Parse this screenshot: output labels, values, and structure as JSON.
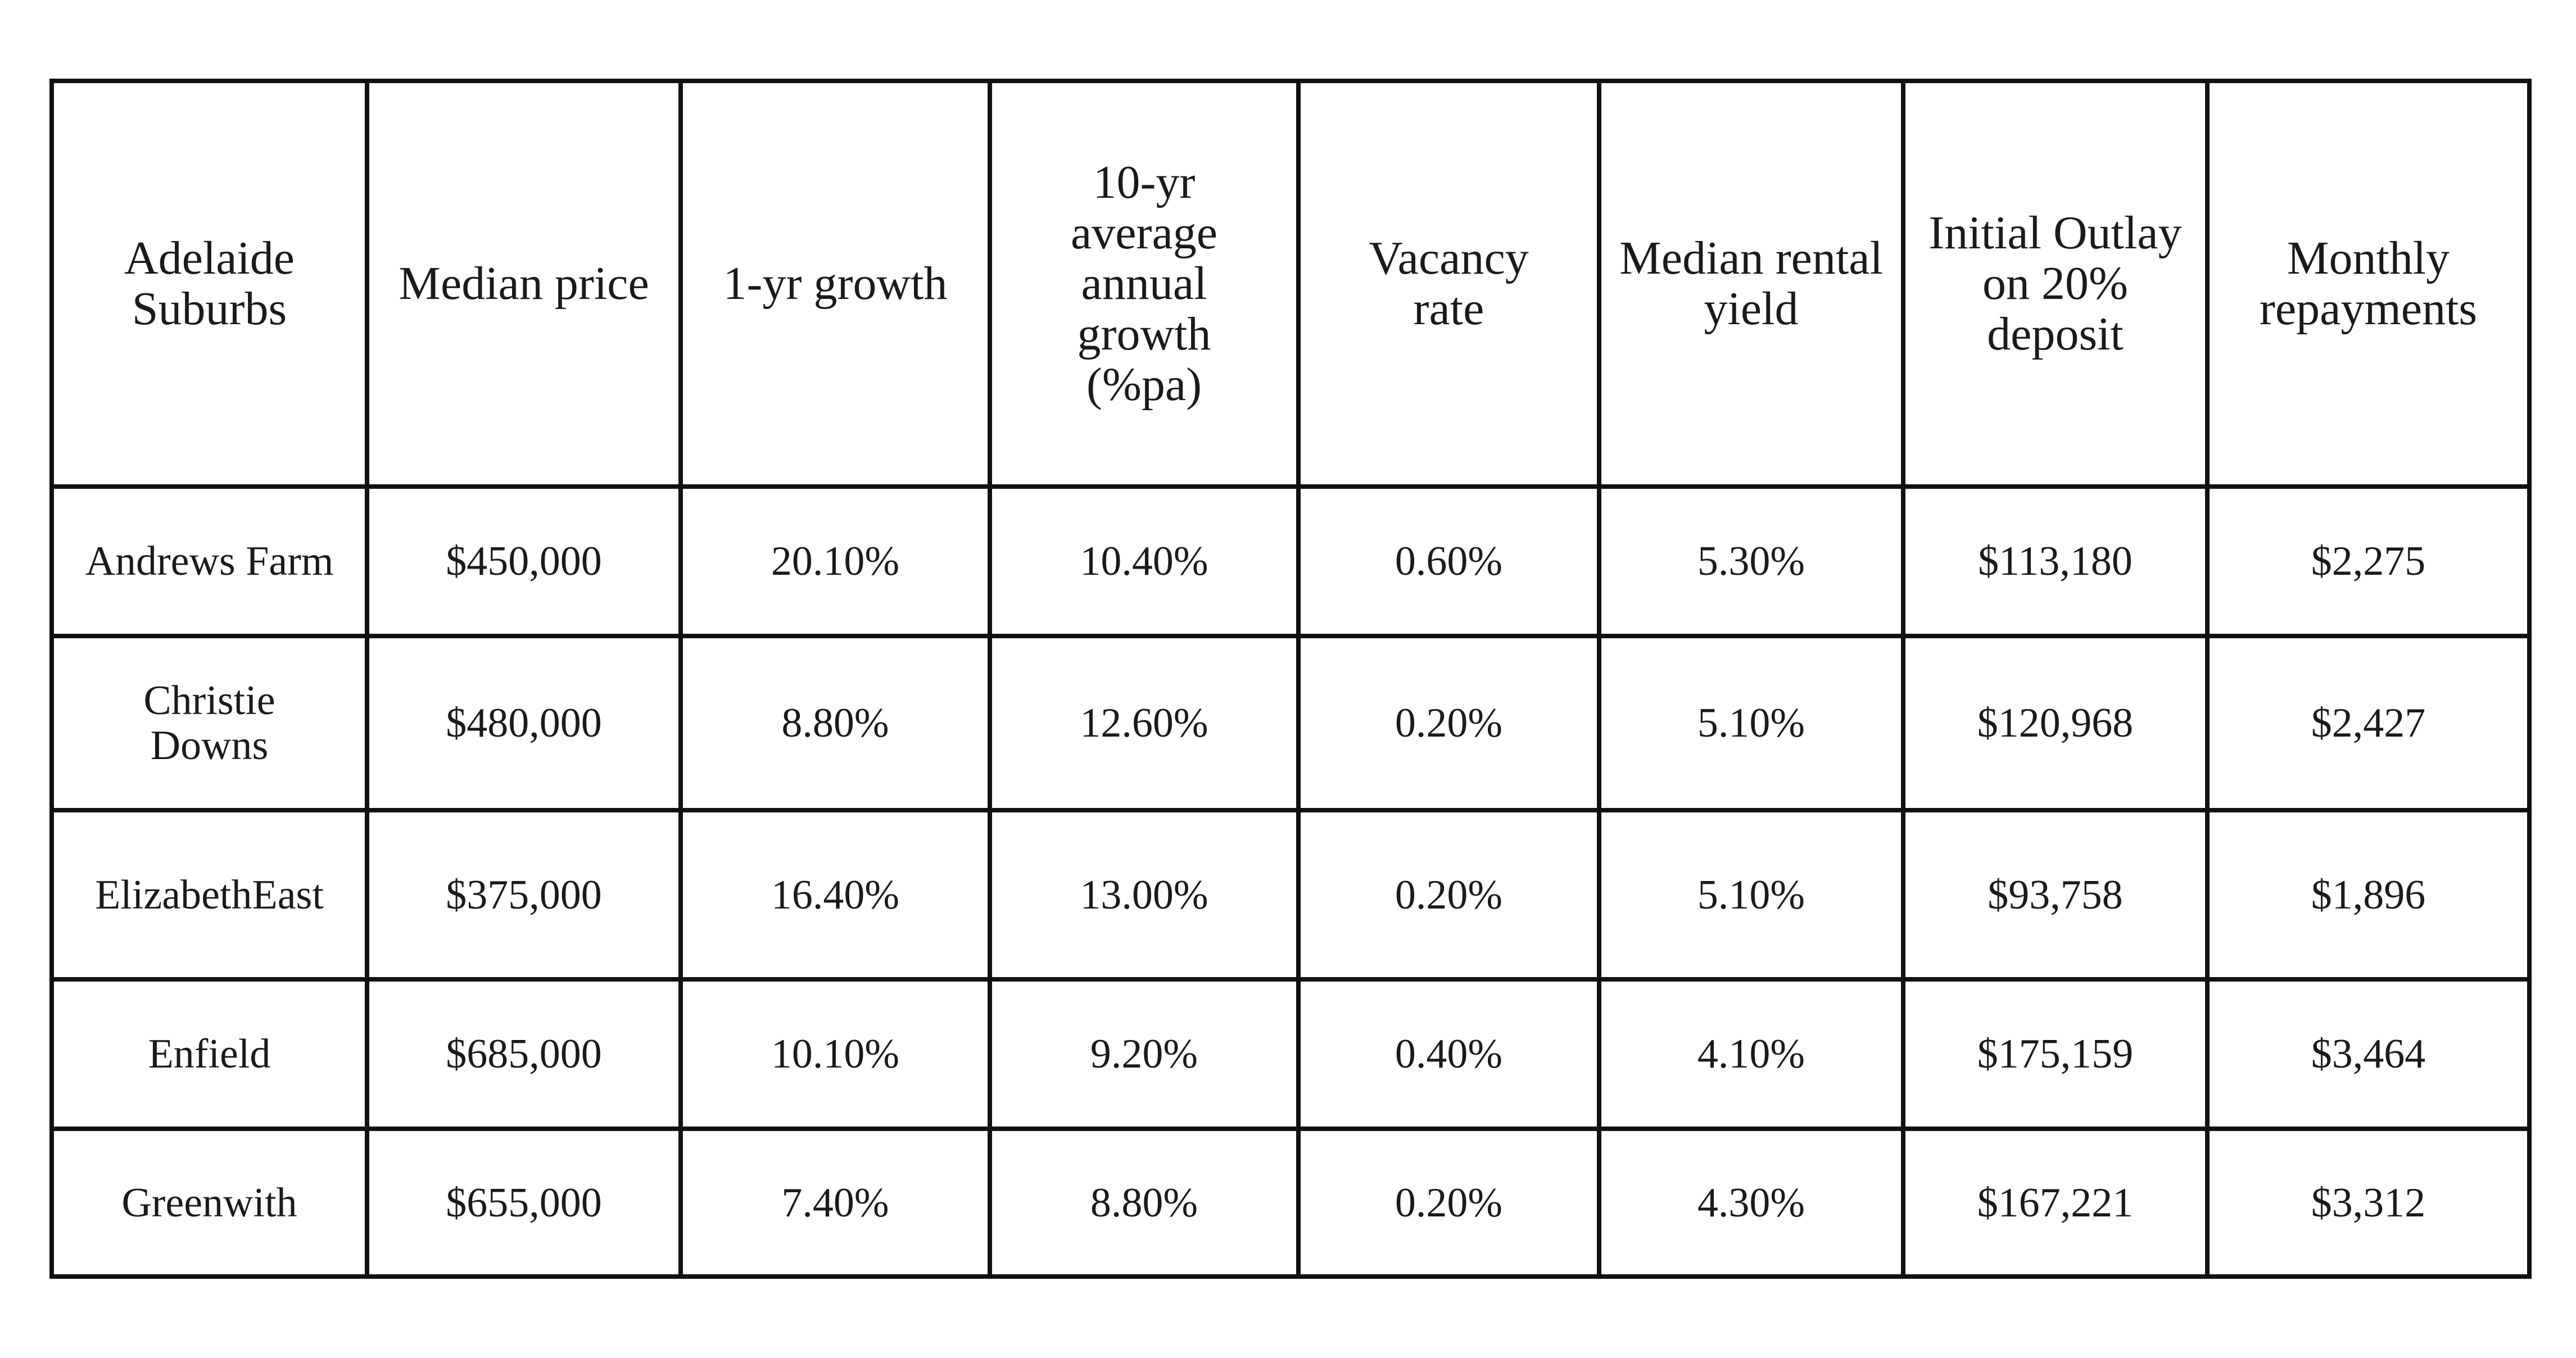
{
  "table": {
    "header": [
      "Adelaide Suburbs",
      "Median price",
      "1-yr growth",
      "10-yr average annual growth (%pa)",
      "Vacancy rate",
      "Median rental yield",
      "Initial Outlay on 20% deposit",
      "Monthly repayments"
    ],
    "rows": [
      [
        "Andrews Farm",
        "$450,000",
        "20.10%",
        "10.40%",
        "0.60%",
        "5.30%",
        "$113,180",
        "$2,275"
      ],
      [
        "Christie Downs",
        "$480,000",
        "8.80%",
        "12.60%",
        "0.20%",
        "5.10%",
        "$120,968",
        "$2,427"
      ],
      [
        "ElizabethEast",
        "$375,000",
        "16.40%",
        "13.00%",
        "0.20%",
        "5.10%",
        "$93,758",
        "$1,896"
      ],
      [
        "Enfield",
        "$685,000",
        "10.10%",
        "9.20%",
        "0.40%",
        "4.10%",
        "$175,159",
        "$3,464"
      ],
      [
        "Greenwith",
        "$655,000",
        "7.40%",
        "8.80%",
        "0.20%",
        "4.30%",
        "$167,221",
        "$3,312"
      ]
    ]
  }
}
